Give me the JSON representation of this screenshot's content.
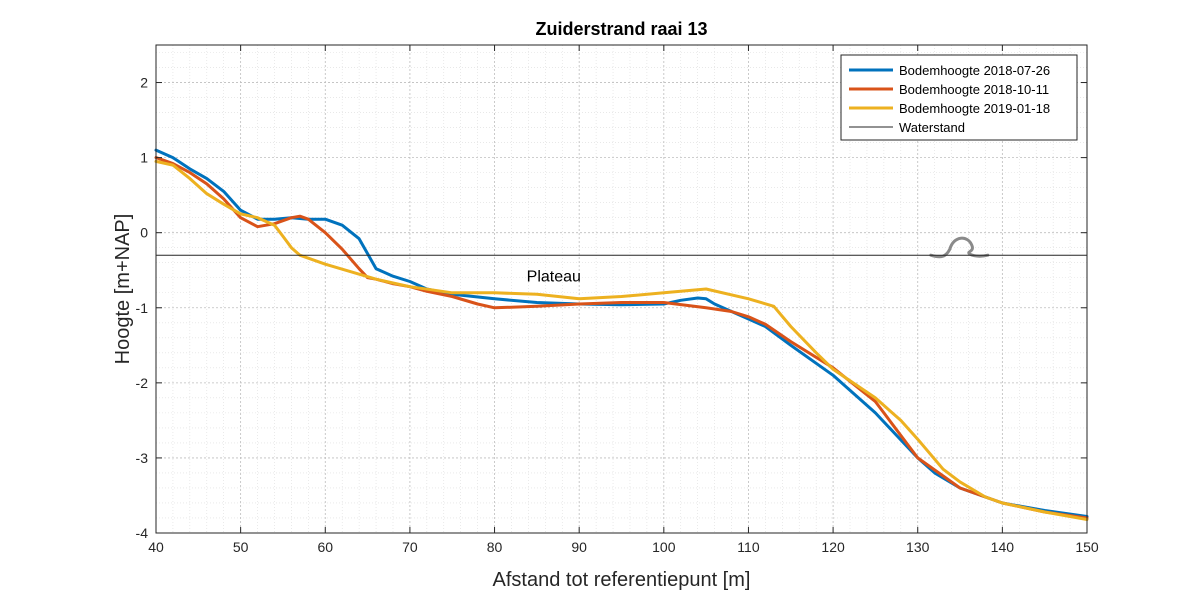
{
  "chart_data": {
    "type": "line",
    "title": "Zuiderstrand raai 13",
    "xlabel": "Afstand tot referentiepunt [m]",
    "ylabel": "Hoogte [m+NAP]",
    "xlim": [
      40,
      150
    ],
    "ylim": [
      -4,
      2.5
    ],
    "xticks": [
      40,
      50,
      60,
      70,
      80,
      90,
      100,
      110,
      120,
      130,
      140,
      150
    ],
    "yticks": [
      -4,
      -3,
      -2,
      -1,
      0,
      1,
      2
    ],
    "grid": true,
    "minor_grid": true,
    "legend_position": "top-right",
    "annotation": {
      "text": "Plateau",
      "x": 87,
      "y": -0.65
    },
    "series": [
      {
        "name": "Bodemhoogte 2018-07-26",
        "color": "#0072BD",
        "x": [
          40,
          42,
          44,
          46,
          48,
          50,
          52,
          54,
          56,
          58,
          60,
          62,
          64,
          66,
          68,
          70,
          72,
          75,
          80,
          85,
          90,
          95,
          100,
          102,
          104,
          105,
          106,
          108,
          110,
          112,
          115,
          120,
          125,
          130,
          132,
          135,
          140,
          145,
          150
        ],
        "y": [
          1.1,
          1.0,
          0.85,
          0.72,
          0.55,
          0.3,
          0.18,
          0.18,
          0.2,
          0.18,
          0.18,
          0.1,
          -0.08,
          -0.48,
          -0.58,
          -0.65,
          -0.75,
          -0.82,
          -0.88,
          -0.93,
          -0.95,
          -0.96,
          -0.95,
          -0.9,
          -0.87,
          -0.88,
          -0.95,
          -1.05,
          -1.15,
          -1.25,
          -1.5,
          -1.9,
          -2.4,
          -3.0,
          -3.2,
          -3.4,
          -3.6,
          -3.7,
          -3.78
        ]
      },
      {
        "name": "Bodemhoogte 2018-10-11",
        "color": "#D95319",
        "x": [
          40,
          42,
          44,
          46,
          48,
          50,
          52,
          54,
          56,
          57,
          58,
          60,
          62,
          64,
          65,
          66,
          68,
          70,
          72,
          75,
          78,
          80,
          85,
          90,
          95,
          100,
          105,
          108,
          110,
          112,
          115,
          120,
          125,
          130,
          135,
          140,
          145,
          150
        ],
        "y": [
          1.0,
          0.92,
          0.8,
          0.65,
          0.45,
          0.2,
          0.08,
          0.12,
          0.2,
          0.22,
          0.18,
          0.0,
          -0.22,
          -0.48,
          -0.6,
          -0.62,
          -0.68,
          -0.72,
          -0.78,
          -0.85,
          -0.95,
          -1.0,
          -0.98,
          -0.95,
          -0.93,
          -0.93,
          -1.0,
          -1.05,
          -1.12,
          -1.22,
          -1.45,
          -1.8,
          -2.25,
          -3.0,
          -3.4,
          -3.6,
          -3.72,
          -3.8
        ]
      },
      {
        "name": "Bodemhoogte 2019-01-18",
        "color": "#EDB120",
        "x": [
          40,
          42,
          44,
          46,
          48,
          50,
          52,
          54,
          55,
          56,
          57,
          60,
          63,
          66,
          70,
          75,
          80,
          85,
          90,
          95,
          100,
          105,
          110,
          113,
          115,
          118,
          120,
          125,
          128,
          130,
          133,
          135,
          138,
          140,
          145,
          150
        ],
        "y": [
          0.95,
          0.9,
          0.72,
          0.52,
          0.38,
          0.25,
          0.2,
          0.1,
          -0.05,
          -0.2,
          -0.3,
          -0.42,
          -0.52,
          -0.62,
          -0.72,
          -0.8,
          -0.8,
          -0.82,
          -0.88,
          -0.85,
          -0.8,
          -0.75,
          -0.88,
          -0.98,
          -1.25,
          -1.6,
          -1.82,
          -2.2,
          -2.5,
          -2.75,
          -3.15,
          -3.32,
          -3.52,
          -3.6,
          -3.72,
          -3.82
        ]
      },
      {
        "name": "Waterstand",
        "color": "#262626",
        "x": [
          40,
          150
        ],
        "y": [
          -0.3,
          -0.3
        ]
      }
    ]
  }
}
